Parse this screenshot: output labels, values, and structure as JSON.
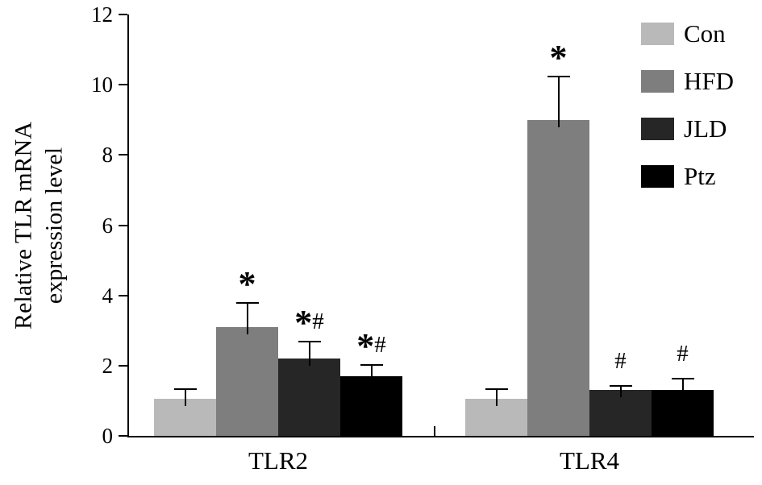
{
  "chart_data": {
    "type": "bar",
    "title": "",
    "ylabel_line1": "Relative TLR mRNA",
    "ylabel_line2": "expression level",
    "xlabel": "",
    "ylim": [
      0,
      12
    ],
    "yticks": [
      0,
      2,
      4,
      6,
      8,
      10,
      12
    ],
    "categories": [
      "TLR2",
      "TLR4"
    ],
    "series": [
      {
        "name": "Con",
        "color": "#b9b9b9",
        "values": [
          1.05,
          1.05
        ],
        "errors": [
          0.3,
          0.3
        ],
        "annotations": [
          "",
          ""
        ]
      },
      {
        "name": "HFD",
        "color": "#7e7e7e",
        "values": [
          3.1,
          9.0
        ],
        "errors": [
          0.7,
          1.25
        ],
        "annotations": [
          "*",
          "*"
        ]
      },
      {
        "name": "JLD",
        "color": "#262626",
        "values": [
          2.2,
          1.3
        ],
        "errors": [
          0.5,
          0.15
        ],
        "annotations": [
          "*#",
          "#"
        ]
      },
      {
        "name": "Ptz",
        "color": "#000000",
        "values": [
          1.7,
          1.3
        ],
        "errors": [
          0.35,
          0.35
        ],
        "annotations": [
          "*#",
          "#"
        ]
      }
    ],
    "legend_position": "top-right",
    "grid": false
  }
}
